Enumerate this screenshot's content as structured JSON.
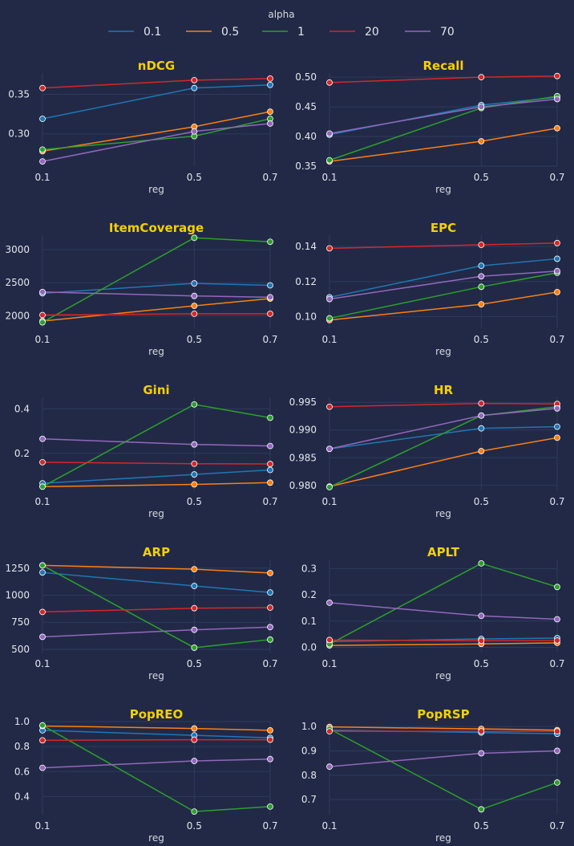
{
  "legend": {
    "title": "alpha",
    "entries": [
      {
        "name": "0.1",
        "color": "#1f77b4"
      },
      {
        "name": "0.5",
        "color": "#ff7f0e"
      },
      {
        "name": "1",
        "color": "#2ca02c"
      },
      {
        "name": "20",
        "color": "#d62728"
      },
      {
        "name": "70",
        "color": "#9467bd"
      }
    ]
  },
  "chart_data": [
    {
      "type": "line",
      "title": "nDCG",
      "xlabel": "reg",
      "x": [
        0.1,
        0.5,
        0.7
      ],
      "ylim": [
        0.259,
        0.377
      ],
      "yticks": [
        0.3,
        0.35
      ],
      "ytick_labels": [
        "0.30",
        "0.35"
      ],
      "series": [
        {
          "name": "0.1",
          "values": [
            0.319,
            0.358,
            0.362
          ]
        },
        {
          "name": "0.5",
          "values": [
            0.278,
            0.309,
            0.328
          ]
        },
        {
          "name": "1",
          "values": [
            0.28,
            0.297,
            0.319
          ]
        },
        {
          "name": "20",
          "values": [
            0.358,
            0.368,
            0.37
          ]
        },
        {
          "name": "70",
          "values": [
            0.265,
            0.303,
            0.313
          ]
        }
      ]
    },
    {
      "type": "line",
      "title": "Recall",
      "xlabel": "reg",
      "x": [
        0.1,
        0.5,
        0.7
      ],
      "ylim": [
        0.35,
        0.507
      ],
      "yticks": [
        0.35,
        0.4,
        0.45,
        0.5
      ],
      "ytick_labels": [
        "0.35",
        "0.40",
        "0.45",
        "0.50"
      ],
      "series": [
        {
          "name": "0.1",
          "values": [
            0.403,
            0.453,
            0.466
          ]
        },
        {
          "name": "0.5",
          "values": [
            0.358,
            0.392,
            0.414
          ]
        },
        {
          "name": "1",
          "values": [
            0.36,
            0.448,
            0.468
          ]
        },
        {
          "name": "20",
          "values": [
            0.491,
            0.5,
            0.502
          ]
        },
        {
          "name": "70",
          "values": [
            0.405,
            0.45,
            0.463
          ]
        }
      ]
    },
    {
      "type": "line",
      "title": "ItemCoverage",
      "xlabel": "reg",
      "x": [
        0.1,
        0.5,
        0.7
      ],
      "ylim": [
        1810,
        3220
      ],
      "yticks": [
        2000,
        2500,
        3000
      ],
      "ytick_labels": [
        "2000",
        "2500",
        "3000"
      ],
      "series": [
        {
          "name": "0.1",
          "values": [
            2340,
            2490,
            2460
          ]
        },
        {
          "name": "0.5",
          "values": [
            1920,
            2150,
            2260
          ]
        },
        {
          "name": "1",
          "values": [
            1900,
            3180,
            3120
          ]
        },
        {
          "name": "20",
          "values": [
            2010,
            2030,
            2030
          ]
        },
        {
          "name": "70",
          "values": [
            2360,
            2300,
            2280
          ]
        }
      ]
    },
    {
      "type": "line",
      "title": "EPC",
      "xlabel": "reg",
      "x": [
        0.1,
        0.5,
        0.7
      ],
      "ylim": [
        0.0933,
        0.1465
      ],
      "yticks": [
        0.1,
        0.12,
        0.14
      ],
      "ytick_labels": [
        "0.10",
        "0.12",
        "0.14"
      ],
      "series": [
        {
          "name": "0.1",
          "values": [
            0.111,
            0.129,
            0.133
          ]
        },
        {
          "name": "0.5",
          "values": [
            0.098,
            0.107,
            0.114
          ]
        },
        {
          "name": "1",
          "values": [
            0.099,
            0.117,
            0.125
          ]
        },
        {
          "name": "20",
          "values": [
            0.139,
            0.141,
            0.142
          ]
        },
        {
          "name": "70",
          "values": [
            0.11,
            0.123,
            0.126
          ]
        }
      ]
    },
    {
      "type": "line",
      "title": "Gini",
      "xlabel": "reg",
      "x": [
        0.1,
        0.5,
        0.7
      ],
      "ylim": [
        0.033,
        0.452
      ],
      "yticks": [
        0.2,
        0.4
      ],
      "ytick_labels": [
        "0.2",
        "0.4"
      ],
      "series": [
        {
          "name": "0.1",
          "values": [
            0.065,
            0.105,
            0.125
          ]
        },
        {
          "name": "0.5",
          "values": [
            0.05,
            0.06,
            0.068
          ]
        },
        {
          "name": "1",
          "values": [
            0.05,
            0.42,
            0.36
          ]
        },
        {
          "name": "20",
          "values": [
            0.16,
            0.153,
            0.152
          ]
        },
        {
          "name": "70",
          "values": [
            0.265,
            0.24,
            0.233
          ]
        }
      ]
    },
    {
      "type": "line",
      "title": "HR",
      "xlabel": "reg",
      "x": [
        0.1,
        0.5,
        0.7
      ],
      "ylim": [
        0.9791,
        0.9959
      ],
      "yticks": [
        0.98,
        0.985,
        0.99,
        0.995
      ],
      "ytick_labels": [
        "0.980",
        "0.985",
        "0.990",
        "0.995"
      ],
      "series": [
        {
          "name": "0.1",
          "values": [
            0.9866,
            0.9903,
            0.9906
          ]
        },
        {
          "name": "0.5",
          "values": [
            0.9798,
            0.9862,
            0.9886
          ]
        },
        {
          "name": "1",
          "values": [
            0.9797,
            0.9926,
            0.9942
          ]
        },
        {
          "name": "20",
          "values": [
            0.9942,
            0.9948,
            0.9947
          ]
        },
        {
          "name": "70",
          "values": [
            0.9866,
            0.9926,
            0.9939
          ]
        }
      ]
    },
    {
      "type": "line",
      "title": "ARP",
      "xlabel": "reg",
      "x": [
        0.1,
        0.5,
        0.7
      ],
      "ylim": [
        470,
        1330
      ],
      "yticks": [
        500,
        750,
        1000,
        1250
      ],
      "ytick_labels": [
        "500",
        "750",
        "1000",
        "1250"
      ],
      "series": [
        {
          "name": "0.1",
          "values": [
            1210,
            1085,
            1025
          ]
        },
        {
          "name": "0.5",
          "values": [
            1275,
            1240,
            1205
          ]
        },
        {
          "name": "1",
          "values": [
            1275,
            515,
            590
          ]
        },
        {
          "name": "20",
          "values": [
            845,
            880,
            885
          ]
        },
        {
          "name": "70",
          "values": [
            615,
            680,
            705
          ]
        }
      ]
    },
    {
      "type": "line",
      "title": "APLT",
      "xlabel": "reg",
      "x": [
        0.1,
        0.5,
        0.7
      ],
      "ylim": [
        -0.02,
        0.335
      ],
      "yticks": [
        0.0,
        0.1,
        0.2,
        0.3
      ],
      "ytick_labels": [
        "0.0",
        "0.1",
        "0.2",
        "0.3"
      ],
      "series": [
        {
          "name": "0.1",
          "values": [
            0.022,
            0.032,
            0.035
          ]
        },
        {
          "name": "0.5",
          "values": [
            0.007,
            0.013,
            0.017
          ]
        },
        {
          "name": "1",
          "values": [
            0.012,
            0.32,
            0.23
          ]
        },
        {
          "name": "20",
          "values": [
            0.028,
            0.025,
            0.026
          ]
        },
        {
          "name": "70",
          "values": [
            0.17,
            0.12,
            0.107
          ]
        }
      ]
    },
    {
      "type": "line",
      "title": "PopREO",
      "xlabel": "reg",
      "x": [
        0.1,
        0.5,
        0.7
      ],
      "ylim": [
        0.255,
        1.0
      ],
      "yticks": [
        0.4,
        0.6,
        0.8,
        1.0
      ],
      "ytick_labels": [
        "0.4",
        "0.6",
        "0.8",
        "1.0"
      ],
      "series": [
        {
          "name": "0.1",
          "values": [
            0.93,
            0.89,
            0.87
          ]
        },
        {
          "name": "0.5",
          "values": [
            0.965,
            0.945,
            0.93
          ]
        },
        {
          "name": "1",
          "values": [
            0.97,
            0.28,
            0.32
          ]
        },
        {
          "name": "20",
          "values": [
            0.85,
            0.855,
            0.855
          ]
        },
        {
          "name": "70",
          "values": [
            0.63,
            0.685,
            0.7
          ]
        }
      ]
    },
    {
      "type": "line",
      "title": "PopRSP",
      "xlabel": "reg",
      "x": [
        0.1,
        0.5,
        0.7
      ],
      "ylim": [
        0.638,
        1.02
      ],
      "yticks": [
        0.7,
        0.8,
        0.9,
        1.0
      ],
      "ytick_labels": [
        "0.7",
        "0.8",
        "0.9",
        "1.0"
      ],
      "series": [
        {
          "name": "0.1",
          "values": [
            0.985,
            0.975,
            0.97
          ]
        },
        {
          "name": "0.5",
          "values": [
            0.998,
            0.99,
            0.985
          ]
        },
        {
          "name": "1",
          "values": [
            0.99,
            0.66,
            0.77
          ]
        },
        {
          "name": "20",
          "values": [
            0.98,
            0.98,
            0.98
          ]
        },
        {
          "name": "70",
          "values": [
            0.835,
            0.89,
            0.9
          ]
        }
      ]
    }
  ]
}
